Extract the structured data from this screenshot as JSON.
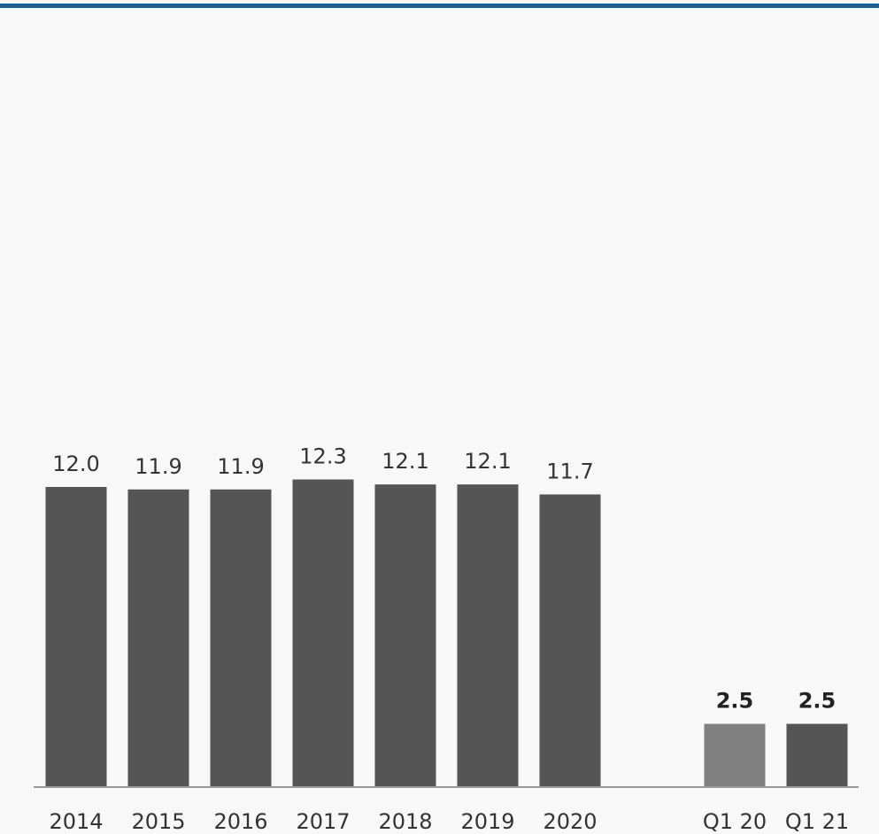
{
  "chart_data": {
    "type": "bar",
    "categories": [
      "2014",
      "2015",
      "2016",
      "2017",
      "2018",
      "2019",
      "2020",
      "Q1 20",
      "Q1 21"
    ],
    "values": [
      12.0,
      11.9,
      11.9,
      12.3,
      12.1,
      12.1,
      11.7,
      2.5,
      2.5
    ],
    "value_labels": [
      "12.0",
      "11.9",
      "11.9",
      "12.3",
      "12.1",
      "12.1",
      "11.7",
      "2.5",
      "2.5"
    ],
    "bold_labels": [
      false,
      false,
      false,
      false,
      false,
      false,
      false,
      true,
      true
    ],
    "bar_colors": [
      "#555555",
      "#555555",
      "#555555",
      "#555555",
      "#555555",
      "#555555",
      "#555555",
      "#808080",
      "#555555"
    ],
    "title": "",
    "xlabel": "",
    "ylabel": "",
    "ylim": [
      0,
      25
    ],
    "grid": false,
    "legend": "none"
  },
  "colors": {
    "top_rule": "#1f5f8e",
    "axis": "#999999",
    "background": "#f8f8f8"
  }
}
